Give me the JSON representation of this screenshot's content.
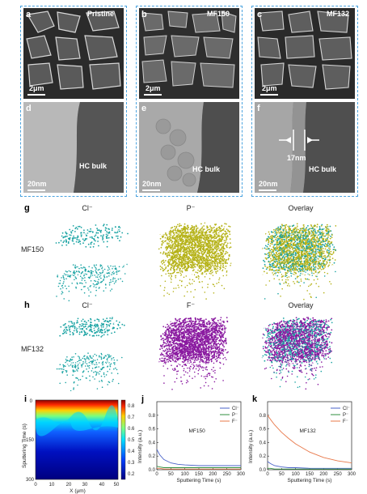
{
  "row1": {
    "a": {
      "letter": "a",
      "tag": "Pristine",
      "scale": "2μm"
    },
    "b": {
      "letter": "b",
      "tag": "MF150",
      "scale": "2μm"
    },
    "c": {
      "letter": "c",
      "tag": "MF132",
      "scale": "2μm"
    },
    "d": {
      "letter": "d",
      "bulk": "HC bulk",
      "scale": "20nm"
    },
    "e": {
      "letter": "e",
      "bulk": "HC bulk",
      "scale": "20nm"
    },
    "f": {
      "letter": "f",
      "bulk": "HC bulk",
      "scale": "20nm",
      "thickness": "17nm"
    }
  },
  "g": {
    "letter": "g",
    "sample": "MF150",
    "headers": [
      "Cl⁻",
      "P⁻",
      "Overlay"
    ]
  },
  "h": {
    "letter": "h",
    "sample": "MF132",
    "headers": [
      "Cl⁻",
      "F⁻",
      "Overlay"
    ]
  },
  "colors": {
    "teal": "#1aa3a3",
    "olive": "#b6b31a",
    "purple": "#8a1aa0",
    "blue": "#4a63c9",
    "green": "#2f8f3f",
    "orange": "#e8784a"
  },
  "i": {
    "letter": "i",
    "ylabel": "Sputtering Time (s)",
    "xlabel": "X (μm)",
    "xticks": [
      "0",
      "10",
      "20",
      "30",
      "40",
      "50"
    ],
    "yticks": [
      "0",
      "150",
      "300"
    ],
    "cbar_ticks": [
      "0.2",
      "0.3",
      "0.4",
      "0.5",
      "0.6",
      "0.7",
      "0.8"
    ]
  },
  "j": {
    "letter": "j",
    "sample": "MF150"
  },
  "k": {
    "letter": "k",
    "sample": "MF132"
  },
  "chart_data": [
    {
      "type": "heatmap",
      "panel": "i",
      "xlabel": "X (μm)",
      "ylabel": "Sputtering Time (s)",
      "xlim": [
        0,
        50
      ],
      "ylim": [
        0,
        300
      ],
      "colorbar": [
        0.2,
        0.8
      ]
    },
    {
      "type": "line",
      "panel": "j",
      "xlabel": "Sputtering Time (s)",
      "ylabel": "Intensity (a.u.)",
      "xlim": [
        0,
        300
      ],
      "ylim": [
        0,
        1.0
      ],
      "xticks": [
        0,
        50,
        100,
        150,
        200,
        250,
        300
      ],
      "yticks": [
        0.0,
        0.2,
        0.4,
        0.6,
        0.8
      ],
      "legend": "top-right",
      "x": [
        0,
        10,
        25,
        50,
        75,
        100,
        150,
        200,
        250,
        300
      ],
      "series": [
        {
          "name": "Cl⁻",
          "color": "#4a63c9",
          "values": [
            0.3,
            0.22,
            0.15,
            0.1,
            0.08,
            0.07,
            0.06,
            0.06,
            0.06,
            0.06
          ]
        },
        {
          "name": "P⁻",
          "color": "#2f8f3f",
          "values": [
            0.05,
            0.04,
            0.03,
            0.03,
            0.03,
            0.03,
            0.03,
            0.03,
            0.03,
            0.03
          ]
        },
        {
          "name": "F⁻",
          "color": "#e8784a",
          "values": [
            0.02,
            0.02,
            0.01,
            0.01,
            0.01,
            0.01,
            0.01,
            0.01,
            0.01,
            0.01
          ]
        }
      ]
    },
    {
      "type": "line",
      "panel": "k",
      "xlabel": "Sputtering Time (s)",
      "ylabel": "Intensity (a.u.)",
      "xlim": [
        0,
        300
      ],
      "ylim": [
        0,
        1.0
      ],
      "xticks": [
        0,
        50,
        100,
        150,
        200,
        250,
        300
      ],
      "yticks": [
        0.0,
        0.2,
        0.4,
        0.6,
        0.8
      ],
      "legend": "top-right",
      "x": [
        0,
        10,
        25,
        50,
        75,
        100,
        150,
        200,
        250,
        300
      ],
      "series": [
        {
          "name": "Cl⁻",
          "color": "#4a63c9",
          "values": [
            0.12,
            0.09,
            0.06,
            0.04,
            0.03,
            0.03,
            0.02,
            0.02,
            0.02,
            0.02
          ]
        },
        {
          "name": "P⁻",
          "color": "#2f8f3f",
          "values": [
            0.02,
            0.02,
            0.01,
            0.01,
            0.01,
            0.01,
            0.01,
            0.01,
            0.01,
            0.01
          ]
        },
        {
          "name": "F⁻",
          "color": "#e8784a",
          "values": [
            0.8,
            0.74,
            0.66,
            0.55,
            0.46,
            0.38,
            0.26,
            0.18,
            0.13,
            0.1
          ]
        }
      ]
    }
  ]
}
